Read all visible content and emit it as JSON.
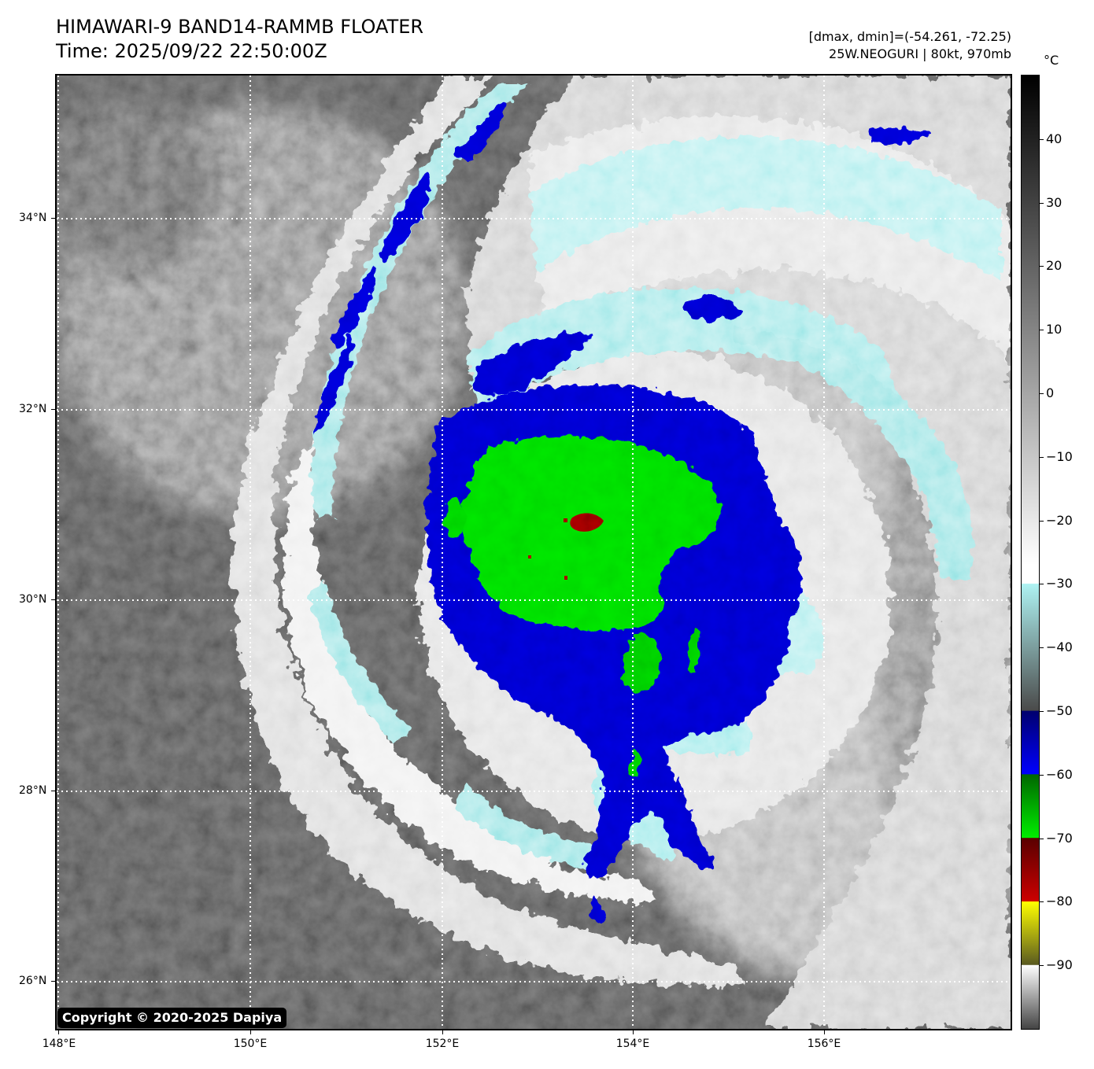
{
  "title": {
    "line1": "HIMAWARI-9 BAND14-RAMMB FLOATER",
    "line2": "Time: 2025/09/22 22:50:00Z"
  },
  "info": {
    "line1": "[dmax, dmin]=(-54.261, -72.25)",
    "line2": "25W.NEOGURI | 80kt, 970mb"
  },
  "map": {
    "lat_labels": [
      "34°N",
      "32°N",
      "30°N",
      "28°N",
      "26°N"
    ],
    "lon_labels": [
      "148°E",
      "150°E",
      "152°E",
      "154°E",
      "156°E"
    ],
    "lat_range": [
      25.5,
      35.5
    ],
    "lon_range": [
      148.0,
      158.0
    ]
  },
  "storm": {
    "name": "25W.NEOGURI",
    "center_lat": 30.75,
    "center_lon": 153.45
  },
  "colorbar": {
    "unit": "°C",
    "ticks": [
      "40",
      "30",
      "20",
      "10",
      "0",
      "−10",
      "−20",
      "−30",
      "−40",
      "−50",
      "−60",
      "−70",
      "−80",
      "−90"
    ],
    "tick_values": [
      40,
      30,
      20,
      10,
      0,
      -10,
      -20,
      -30,
      -40,
      -50,
      -60,
      -70,
      -80,
      -90
    ],
    "range": [
      -100,
      50
    ]
  },
  "copyright": "Copyright © 2020-2025 Dapiya",
  "colors": {
    "cold_blue": "#0000c8",
    "green": "#00d000",
    "dark_red": "#8b0000",
    "cyan": "#9fe6e6"
  }
}
